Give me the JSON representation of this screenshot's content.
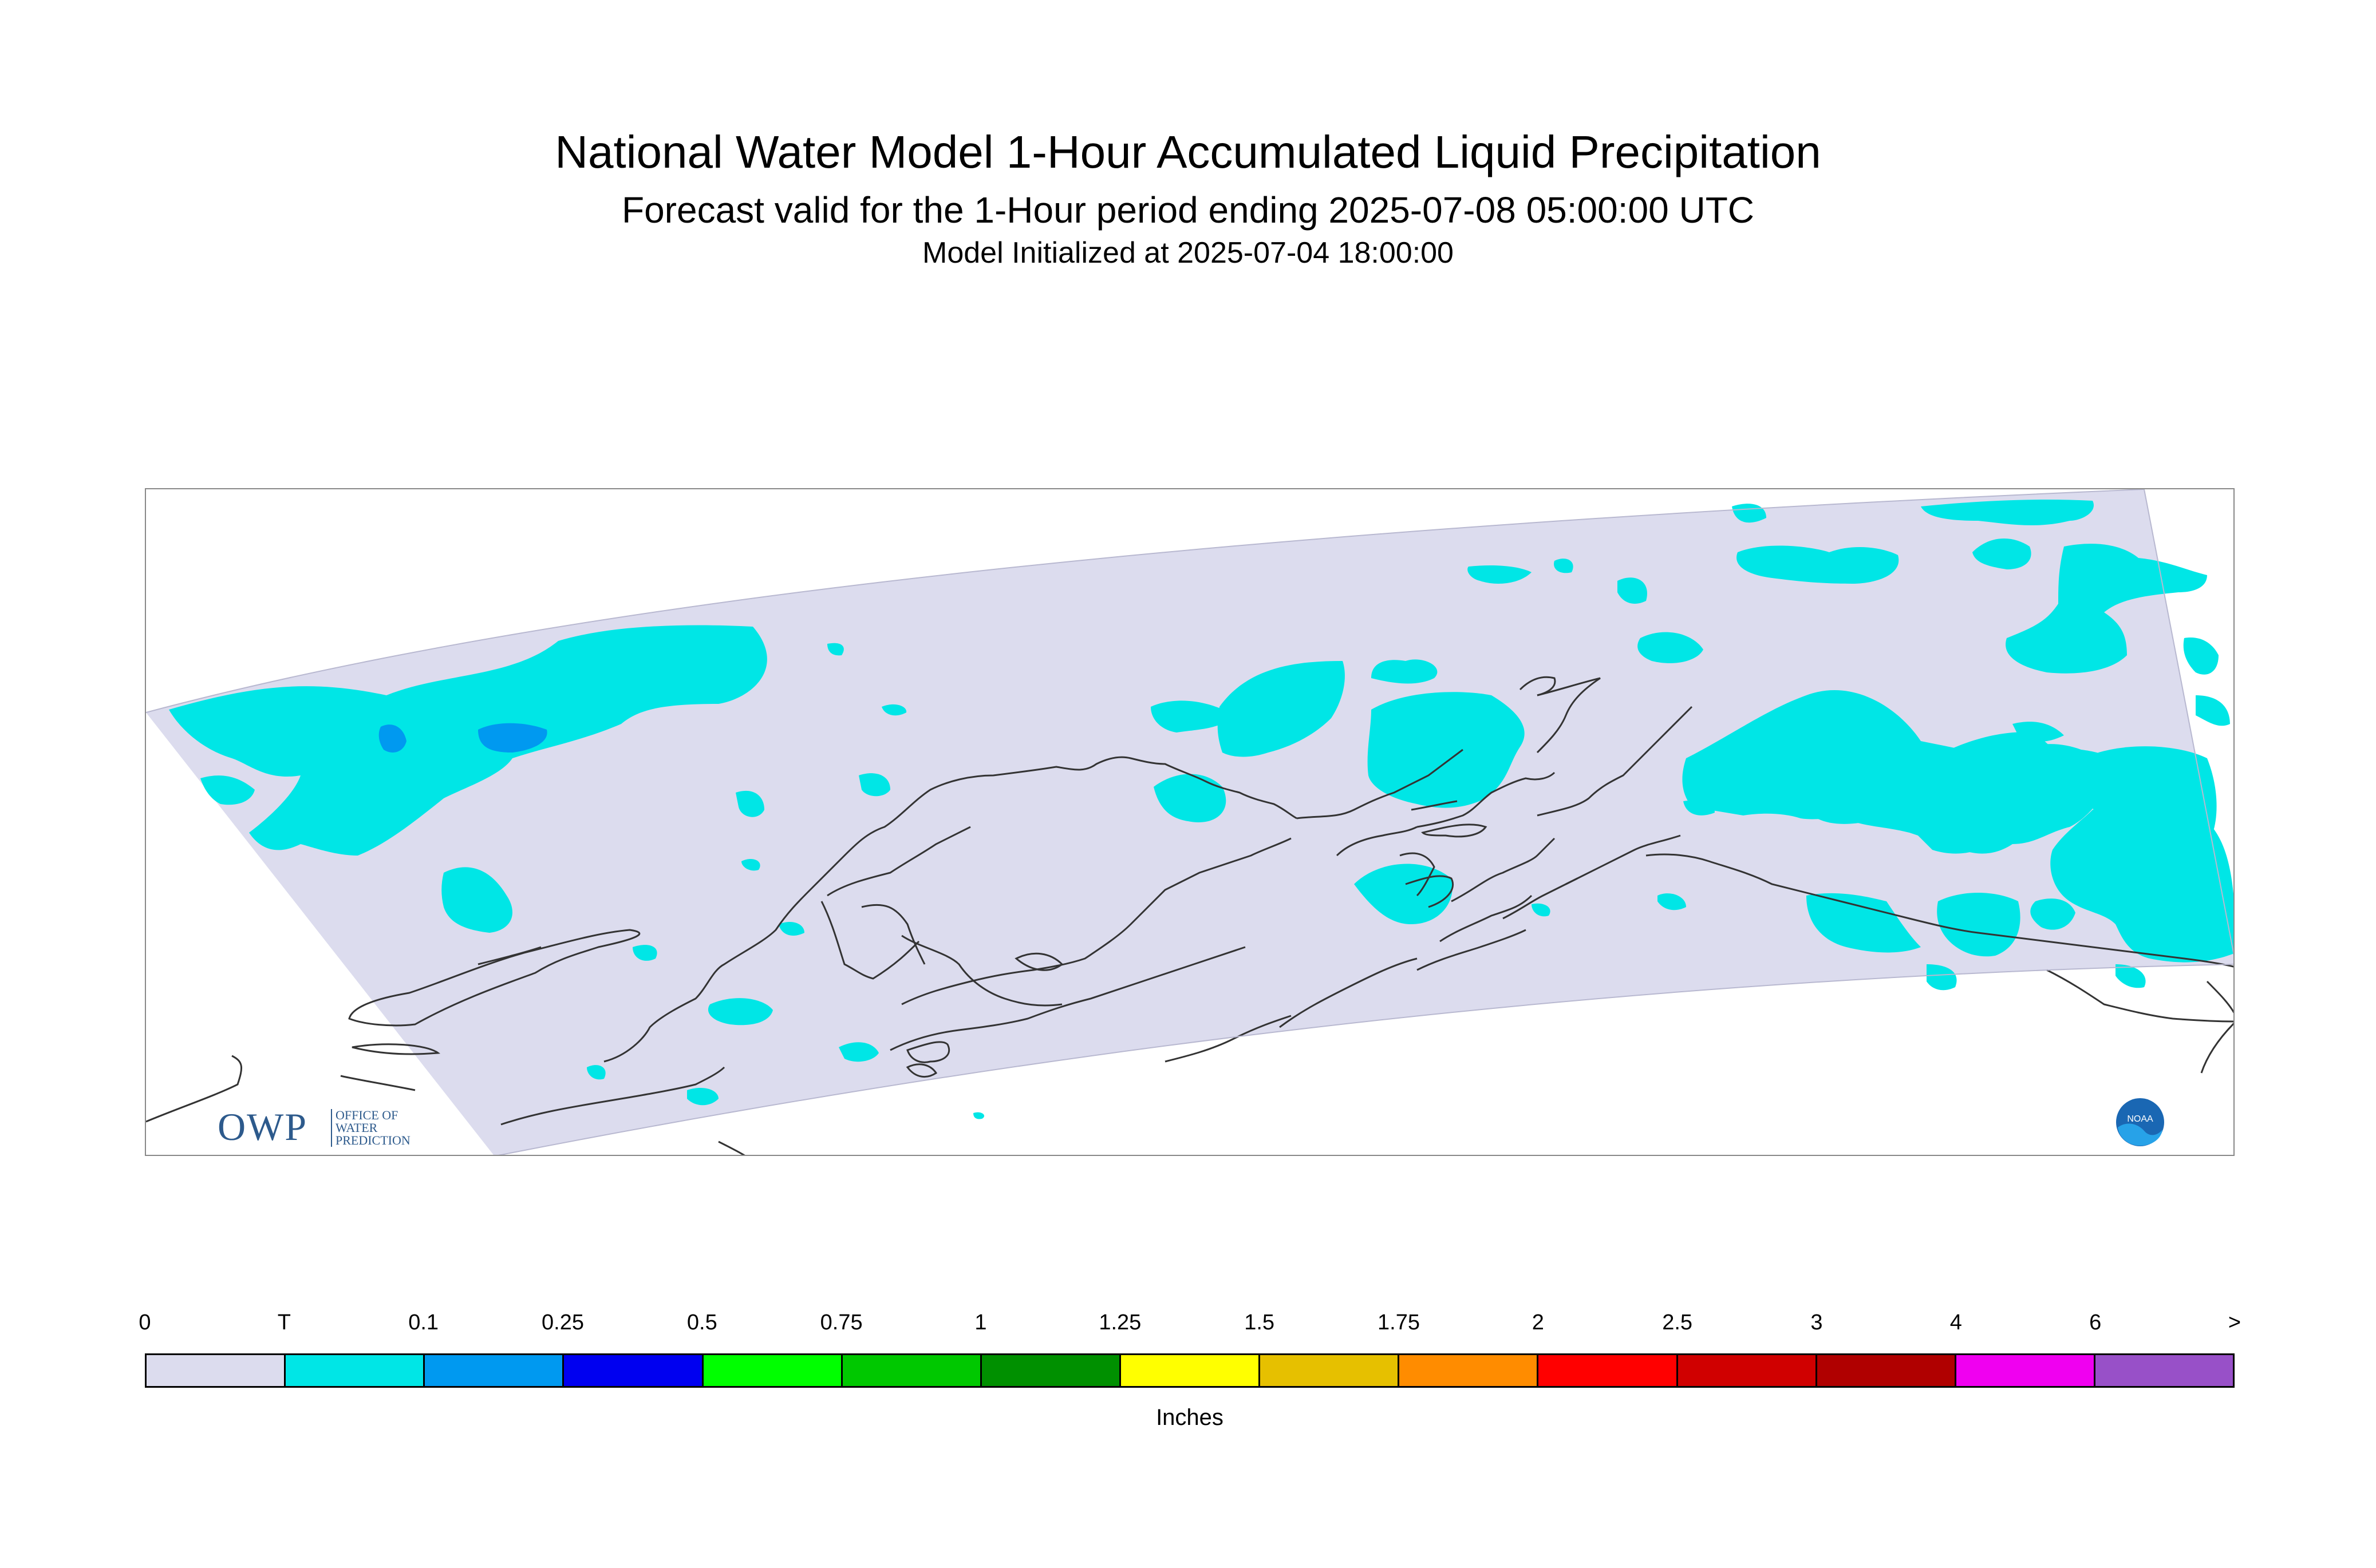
{
  "header": {
    "title": "National Water Model 1-Hour Accumulated Liquid Precipitation",
    "subtitle": "Forecast valid for the 1-Hour period ending 2025-07-08 05:00:00 UTC",
    "init": "Model Initialized at 2025-07-04 18:00:00"
  },
  "logos": {
    "owp_big": "OWP",
    "owp_small": [
      "OFFICE OF",
      "WATER",
      "PREDICTION"
    ],
    "noaa": "NOAA"
  },
  "map": {
    "domain_fill": "#dcdcee",
    "coastline_color": "#333333",
    "precip_class": "T"
  },
  "legend": {
    "unit": "Inches",
    "labels": [
      "0",
      "T",
      "0.1",
      "0.25",
      "0.5",
      "0.75",
      "1",
      "1.25",
      "1.5",
      "1.75",
      "2",
      "2.5",
      "3",
      "4",
      "6",
      ">"
    ],
    "colors": [
      "#dcdcee",
      "#00e6e6",
      "#0099f0",
      "#0000f0",
      "#00ff00",
      "#00c800",
      "#009000",
      "#ffff00",
      "#e6c000",
      "#ff8c00",
      "#ff0000",
      "#d00000",
      "#b00000",
      "#f000f0",
      "#9850c8"
    ]
  }
}
